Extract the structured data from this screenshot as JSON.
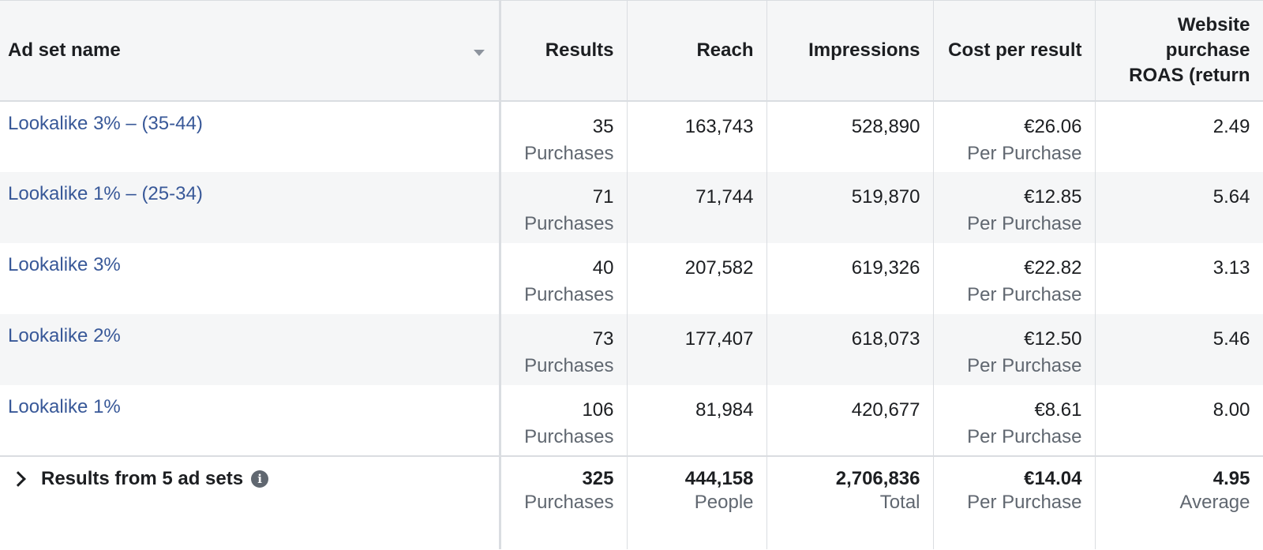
{
  "columns": {
    "name": "Ad set name",
    "results": "Results",
    "reach": "Reach",
    "impressions": "Impressions",
    "cost": "Cost per result",
    "roas_line1": "Website",
    "roas_line2": "purchase",
    "roas_line3": "ROAS (return"
  },
  "rows": [
    {
      "name": "Lookalike 3% – (35-44)",
      "results": "35",
      "results_sub": "Purchases",
      "reach": "163,743",
      "impressions": "528,890",
      "cost": "€26.06",
      "cost_sub": "Per Purchase",
      "roas": "2.49"
    },
    {
      "name": "Lookalike 1% – (25-34)",
      "results": "71",
      "results_sub": "Purchases",
      "reach": "71,744",
      "impressions": "519,870",
      "cost": "€12.85",
      "cost_sub": "Per Purchase",
      "roas": "5.64"
    },
    {
      "name": "Lookalike 3%",
      "results": "40",
      "results_sub": "Purchases",
      "reach": "207,582",
      "impressions": "619,326",
      "cost": "€22.82",
      "cost_sub": "Per Purchase",
      "roas": "3.13"
    },
    {
      "name": "Lookalike 2%",
      "results": "73",
      "results_sub": "Purchases",
      "reach": "177,407",
      "impressions": "618,073",
      "cost": "€12.50",
      "cost_sub": "Per Purchase",
      "roas": "5.46"
    },
    {
      "name": "Lookalike 1%",
      "results": "106",
      "results_sub": "Purchases",
      "reach": "81,984",
      "impressions": "420,677",
      "cost": "€8.61",
      "cost_sub": "Per Purchase",
      "roas": "8.00"
    }
  ],
  "total": {
    "label": "Results from 5 ad sets",
    "results": "325",
    "results_sub": "Purchases",
    "reach": "444,158",
    "reach_sub": "People",
    "impressions": "2,706,836",
    "impressions_sub": "Total",
    "cost": "€14.04",
    "cost_sub": "Per Purchase",
    "roas": "4.95",
    "roas_sub": "Average"
  },
  "icons": {
    "sort": "chevron-down-icon",
    "expand": "chevron-right-icon",
    "info": "info-icon"
  },
  "colors": {
    "link": "#385898",
    "header_bg": "#f5f6f7",
    "alt_row_bg": "#f5f6f7",
    "border": "#dadde1",
    "muted_text": "#606770"
  }
}
